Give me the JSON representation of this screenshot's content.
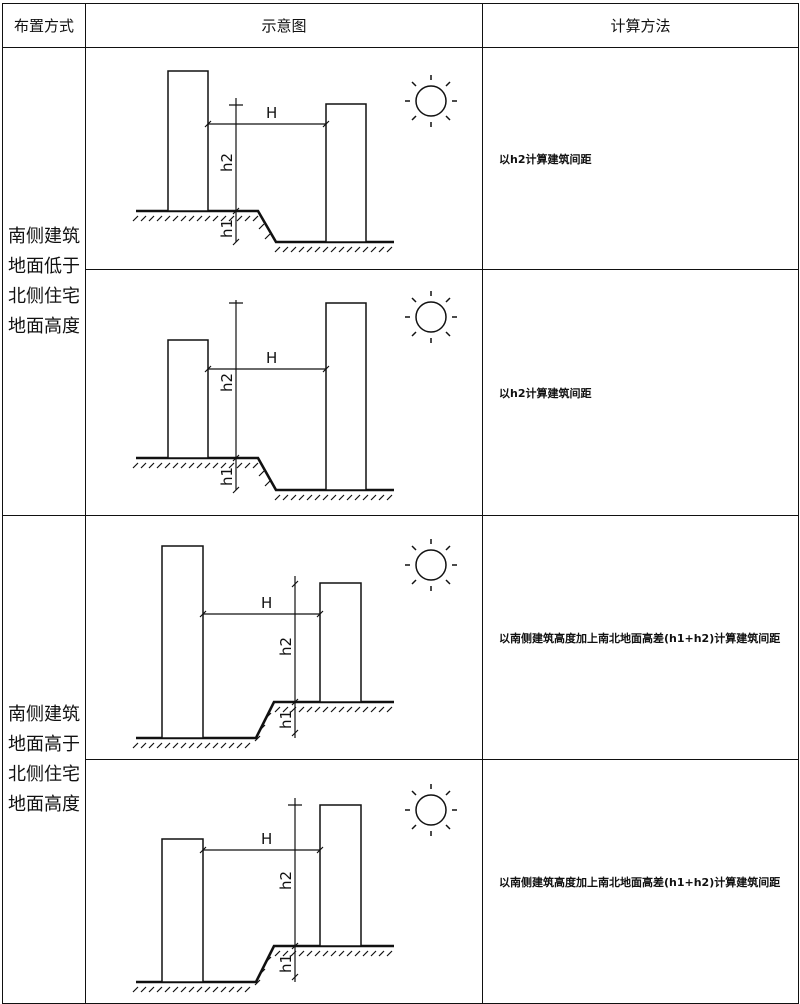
{
  "header": {
    "col1": "布置方式",
    "col2": "示意图",
    "col3": "计算方法"
  },
  "groups": [
    {
      "category_lines": [
        "南侧建筑",
        "地面低于",
        "北侧住宅",
        "地面高度"
      ],
      "rows": [
        {
          "method": "以h2计算建筑间距"
        },
        {
          "method": "以h2计算建筑间距"
        }
      ]
    },
    {
      "category_lines": [
        "南侧建筑",
        "地面高于",
        "北侧住宅",
        "地面高度"
      ],
      "rows": [
        {
          "method": "以南侧建筑高度加上南北地面高差(h1+h2)计算建筑间距"
        },
        {
          "method": "以南侧建筑高度加上南北地面高差(h1+h2)计算建筑间距"
        }
      ]
    }
  ],
  "diagram_labels": {
    "H": "H",
    "h1": "h1",
    "h2": "h2"
  },
  "icons": {
    "sun": "sun-icon",
    "ground": "ground-hatch"
  }
}
